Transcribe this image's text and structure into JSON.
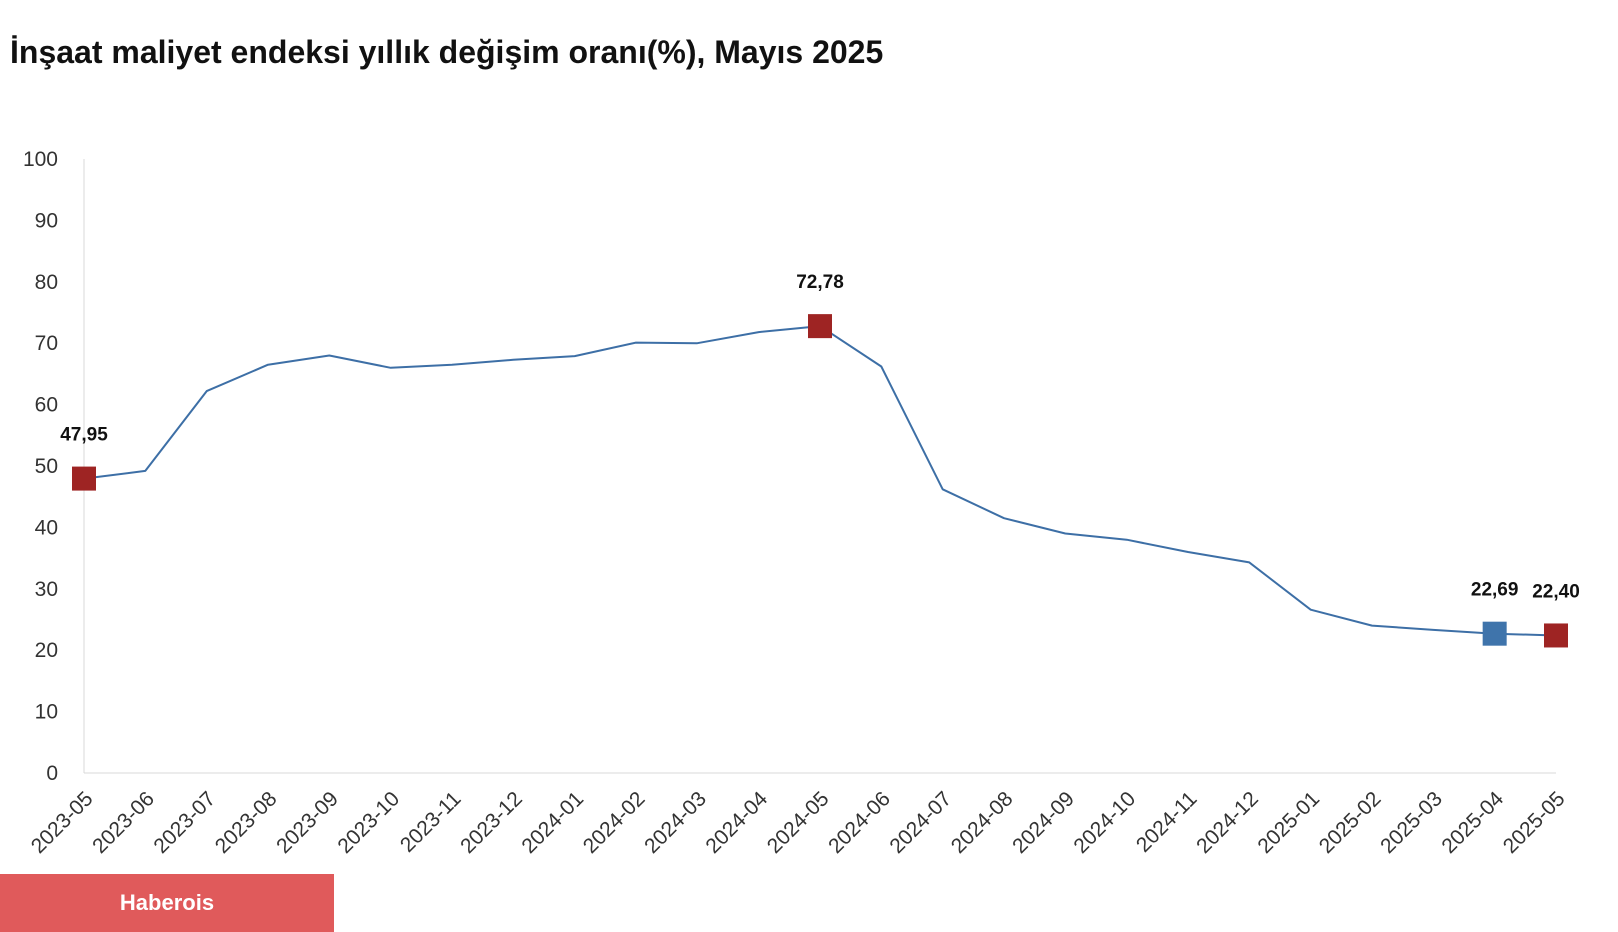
{
  "title": "İnşaat maliyet endeksi yıllık değişim oranı(%), Mayıs 2025",
  "brand": {
    "label": "Haberois",
    "color": "#e05a5b"
  },
  "chart_data": {
    "type": "line",
    "title": "İnşaat maliyet endeksi yıllık değişim oranı(%), Mayıs 2025",
    "xlabel": "",
    "ylabel": "",
    "ylim": [
      0,
      100
    ],
    "yticks": [
      "0",
      "10",
      "20",
      "30",
      "40",
      "50",
      "60",
      "70",
      "80",
      "90",
      "100"
    ],
    "grid": false,
    "legend": "none",
    "line_color": "#3d6fa6",
    "categories": [
      "2023-05",
      "2023-06",
      "2023-07",
      "2023-08",
      "2023-09",
      "2023-10",
      "2023-11",
      "2023-12",
      "2024-01",
      "2024-02",
      "2024-03",
      "2024-04",
      "2024-05",
      "2024-06",
      "2024-07",
      "2024-08",
      "2024-09",
      "2024-10",
      "2024-11",
      "2024-12",
      "2025-01",
      "2025-02",
      "2025-03",
      "2025-04",
      "2025-05"
    ],
    "series": [
      {
        "values": [
          47.95,
          49.2,
          62.2,
          66.5,
          68.0,
          66.0,
          66.5,
          67.3,
          67.9,
          70.1,
          70.0,
          71.8,
          72.78,
          66.2,
          46.2,
          41.5,
          39.0,
          38.0,
          36.0,
          34.3,
          26.6,
          24.0,
          23.3,
          22.69,
          22.4
        ]
      }
    ],
    "highlights": [
      {
        "index": 0,
        "label": "47,95",
        "color": "#9e2423"
      },
      {
        "index": 12,
        "label": "72,78",
        "color": "#9e2423"
      },
      {
        "index": 23,
        "label": "22,69",
        "color": "#3f74ab"
      },
      {
        "index": 24,
        "label": "22,40",
        "color": "#9e2423"
      }
    ]
  }
}
